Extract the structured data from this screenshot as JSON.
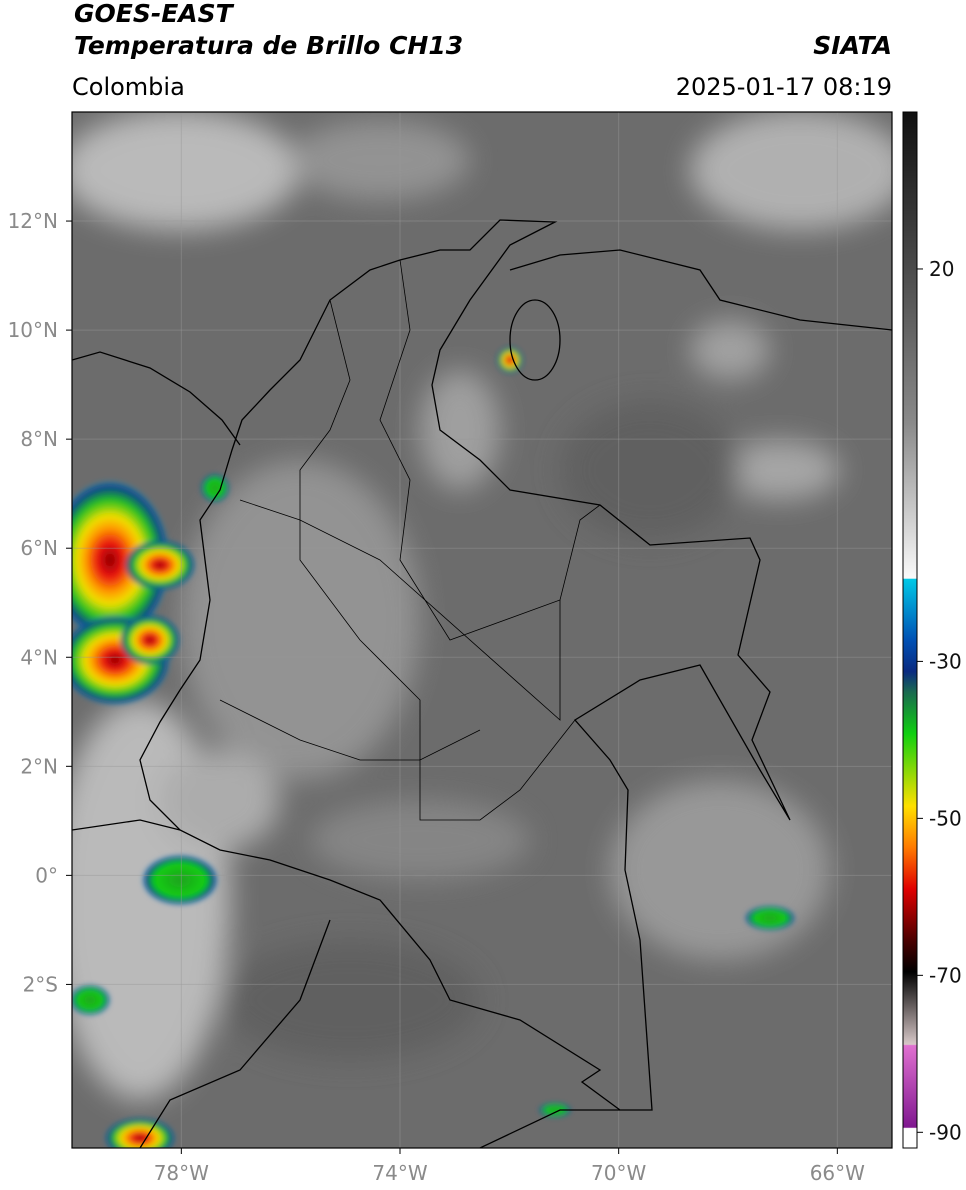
{
  "header": {
    "satellite": "GOES-EAST",
    "product": "Temperatura de Brillo CH13",
    "agency": "SIATA",
    "region": "Colombia",
    "timestamp": "2025-01-17 08:19"
  },
  "map": {
    "xlim": [
      -80,
      -65
    ],
    "ylim": [
      -5,
      14
    ],
    "grid": true,
    "xticks": [
      {
        "value": -78,
        "label": "78°W"
      },
      {
        "value": -74,
        "label": "74°W"
      },
      {
        "value": -70,
        "label": "70°W"
      },
      {
        "value": -66,
        "label": "66°W"
      }
    ],
    "yticks": [
      {
        "value": 12,
        "label": "12°N"
      },
      {
        "value": 10,
        "label": "10°N"
      },
      {
        "value": 8,
        "label": "8°N"
      },
      {
        "value": 6,
        "label": "6°N"
      },
      {
        "value": 4,
        "label": "4°N"
      },
      {
        "value": 2,
        "label": "2°N"
      },
      {
        "value": 0,
        "label": "0°"
      },
      {
        "value": -2,
        "label": "2°S"
      }
    ]
  },
  "colorbar": {
    "lim": [
      -92,
      40
    ],
    "ticks": [
      20,
      -30,
      -50,
      -70,
      -90
    ]
  }
}
